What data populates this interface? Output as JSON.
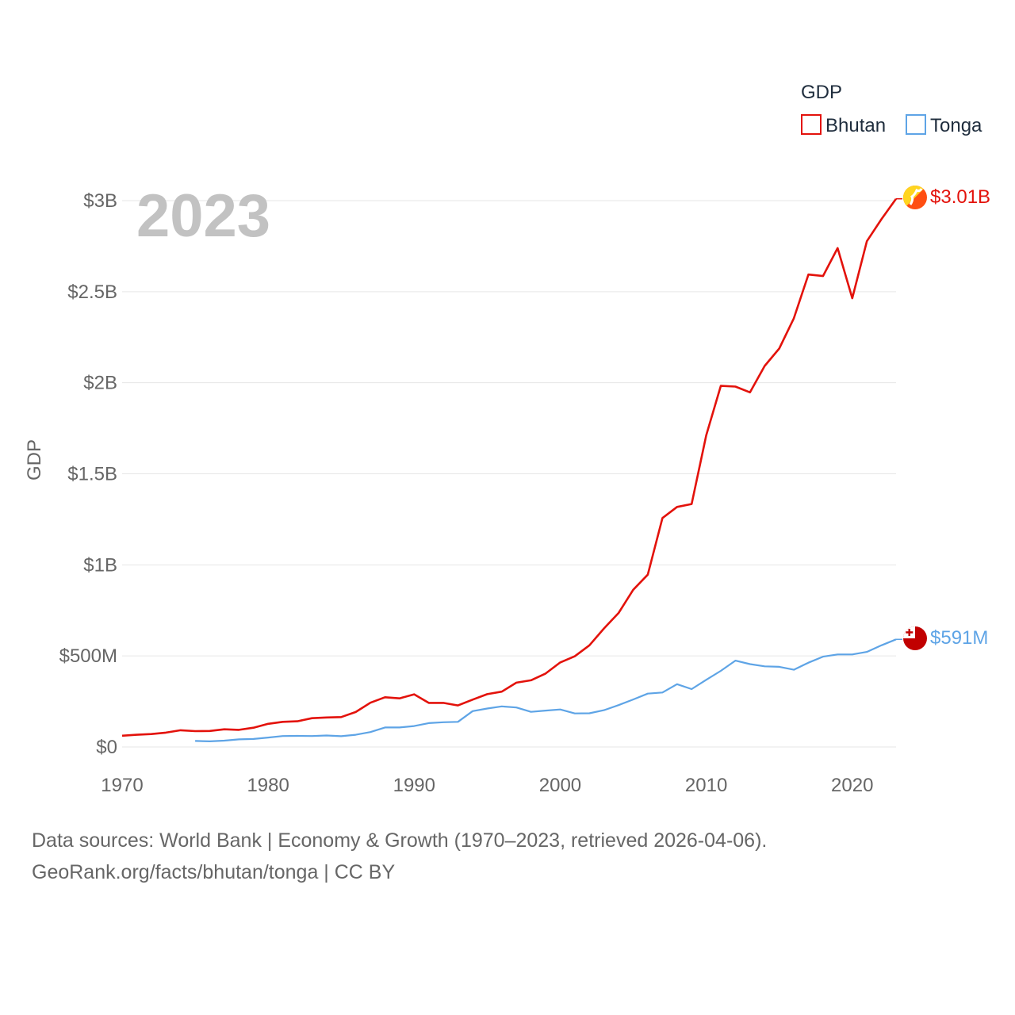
{
  "chart_data": {
    "type": "line",
    "title": "",
    "year_display": "2023",
    "ylabel": "GDP",
    "xlabel": "",
    "xlim": [
      1970,
      2023
    ],
    "ylim": [
      0,
      3000000000
    ],
    "x_ticks": [
      1970,
      1980,
      1990,
      2000,
      2010,
      2020
    ],
    "y_ticks": [
      {
        "value": 0,
        "label": "$0"
      },
      {
        "value": 500000000,
        "label": "$500M"
      },
      {
        "value": 1000000000,
        "label": "$1B"
      },
      {
        "value": 1500000000,
        "label": "$1.5B"
      },
      {
        "value": 2000000000,
        "label": "$2B"
      },
      {
        "value": 2500000000,
        "label": "$2.5B"
      },
      {
        "value": 3000000000,
        "label": "$3B"
      }
    ],
    "legend": {
      "title": "GDP",
      "position": "top-right"
    },
    "series": [
      {
        "name": "Bhutan",
        "color": "#e3120b",
        "end_label": "$3.01B",
        "flag_icon": "bhutan-flag-icon",
        "x": [
          1970,
          1971,
          1972,
          1973,
          1974,
          1975,
          1976,
          1977,
          1978,
          1979,
          1980,
          1981,
          1982,
          1983,
          1984,
          1985,
          1986,
          1987,
          1988,
          1989,
          1990,
          1991,
          1992,
          1993,
          1994,
          1995,
          1996,
          1997,
          1998,
          1999,
          2000,
          2001,
          2002,
          2003,
          2004,
          2005,
          2006,
          2007,
          2008,
          2009,
          2010,
          2011,
          2012,
          2013,
          2014,
          2015,
          2016,
          2017,
          2018,
          2019,
          2020,
          2021,
          2022,
          2023
        ],
        "values": [
          62000000,
          67000000,
          71000000,
          79000000,
          92000000,
          87000000,
          88000000,
          97000000,
          94000000,
          106000000,
          127000000,
          138000000,
          141000000,
          158000000,
          162000000,
          164000000,
          192000000,
          243000000,
          273000000,
          267000000,
          289000000,
          242000000,
          242000000,
          228000000,
          260000000,
          290000000,
          304000000,
          353000000,
          366000000,
          403000000,
          464000000,
          498000000,
          558000000,
          651000000,
          736000000,
          863000000,
          946000000,
          1257000000,
          1318000000,
          1334000000,
          1711000000,
          1983000000,
          1979000000,
          1947000000,
          2092000000,
          2188000000,
          2354000000,
          2594000000,
          2586000000,
          2739000000,
          2464000000,
          2777000000,
          2898000000,
          3010000000
        ]
      },
      {
        "name": "Tonga",
        "color": "#5ea4e6",
        "end_label": "$591M",
        "flag_icon": "tonga-flag-icon",
        "x": [
          1975,
          1976,
          1977,
          1978,
          1979,
          1980,
          1981,
          1982,
          1983,
          1984,
          1985,
          1986,
          1987,
          1988,
          1989,
          1990,
          1991,
          1992,
          1993,
          1994,
          1995,
          1996,
          1997,
          1998,
          1999,
          2000,
          2001,
          2002,
          2003,
          2004,
          2005,
          2006,
          2007,
          2008,
          2009,
          2010,
          2011,
          2012,
          2013,
          2014,
          2015,
          2016,
          2017,
          2018,
          2019,
          2020,
          2021,
          2022,
          2023
        ],
        "values": [
          33000000,
          31000000,
          35000000,
          42000000,
          44000000,
          52000000,
          60000000,
          61000000,
          60000000,
          63000000,
          59000000,
          67000000,
          82000000,
          107000000,
          107000000,
          115000000,
          131000000,
          136000000,
          138000000,
          197000000,
          211000000,
          223000000,
          217000000,
          193000000,
          200000000,
          206000000,
          184000000,
          185000000,
          202000000,
          230000000,
          261000000,
          293000000,
          299000000,
          345000000,
          318000000,
          369000000,
          418000000,
          474000000,
          455000000,
          443000000,
          440000000,
          424000000,
          463000000,
          496000000,
          508000000,
          508000000,
          522000000,
          558000000,
          591000000
        ]
      }
    ]
  },
  "footer": {
    "source_line": "Data sources: World Bank | Economy & Growth (1970–2023, retrieved 2026-04-06).",
    "url_line": "GeoRank.org/facts/bhutan/tonga | CC BY"
  }
}
